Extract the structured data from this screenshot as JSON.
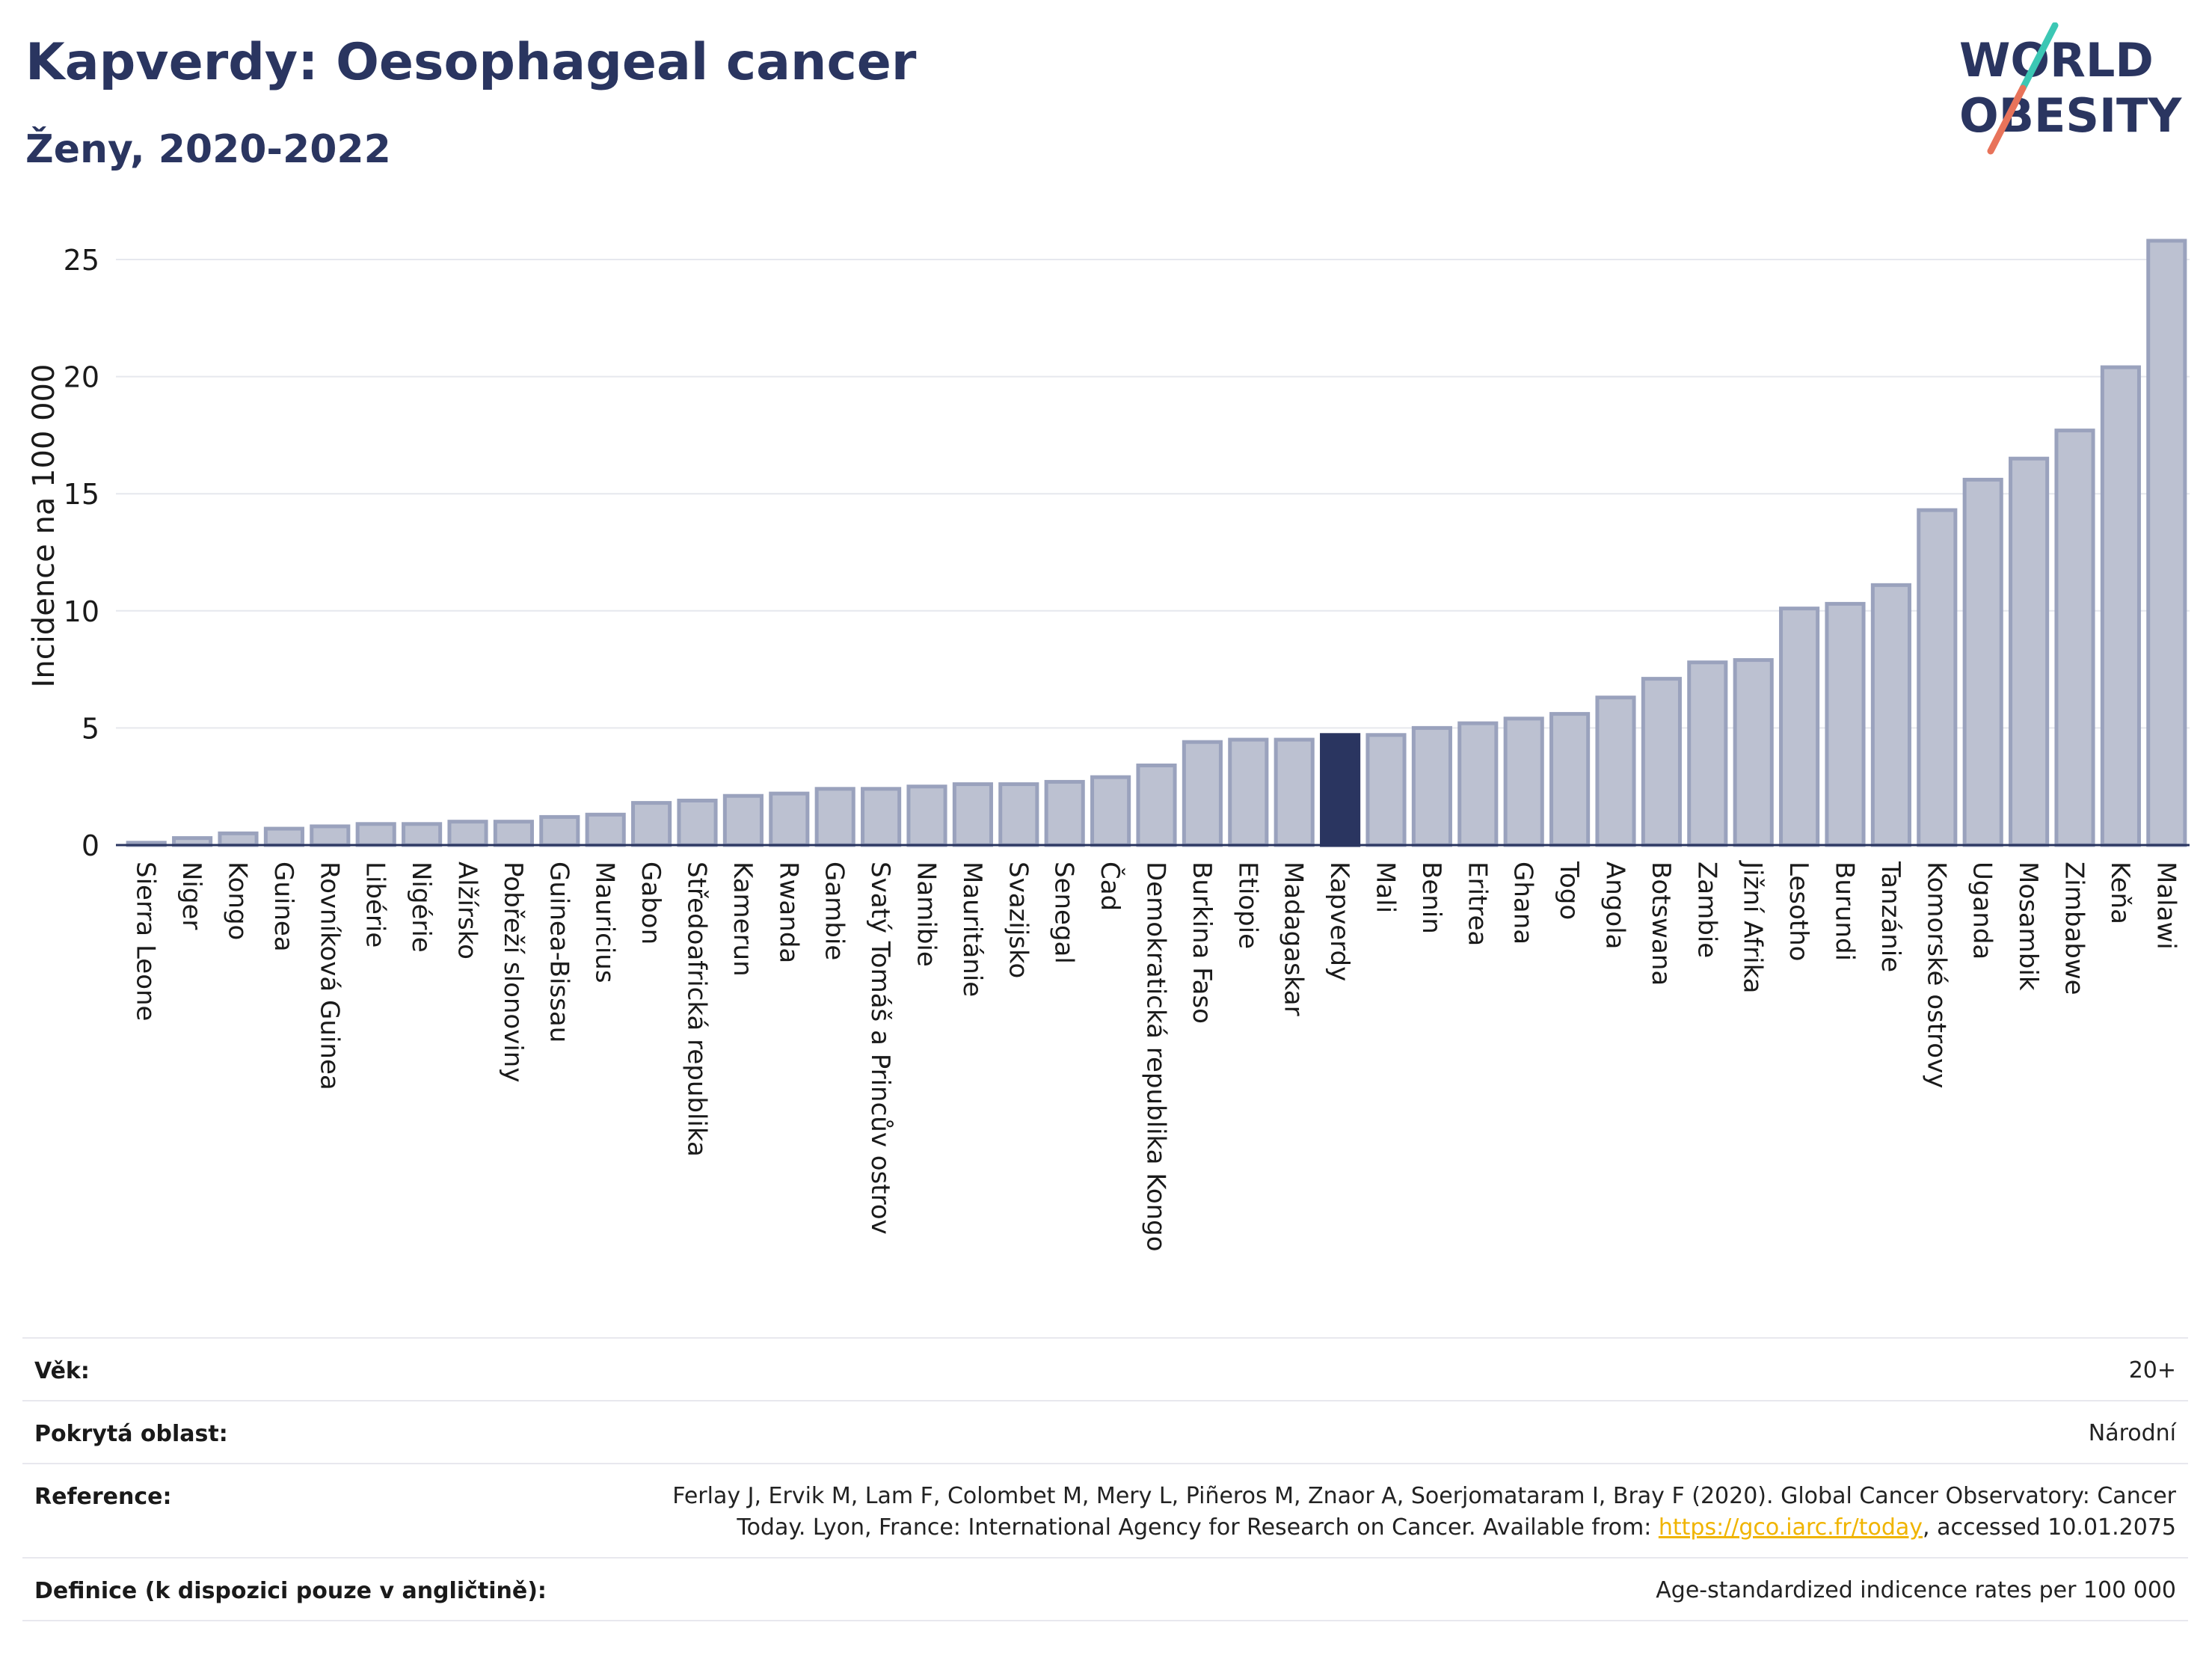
{
  "header": {
    "title": "Kapverdy: Oesophageal cancer",
    "subtitle": "Ženy, 2020-2022"
  },
  "logo": {
    "line1": "WORLD",
    "line2": "OBESITY",
    "slash_colors": [
      "#3cc7b4",
      "#e8735a"
    ]
  },
  "colors": {
    "bar": "#bcc1d1",
    "bar_border": "#9aa2bd",
    "highlight": "#2a3560",
    "grid": "#e6e8ee"
  },
  "chart_data": {
    "type": "bar",
    "ylabel": "Incidence na 100 000",
    "ylim": [
      0,
      26.5
    ],
    "yticks": [
      0,
      5,
      10,
      15,
      20,
      25
    ],
    "grid": true,
    "highlight": "Kapverdy",
    "categories": [
      "Sierra Leone",
      "Niger",
      "Kongo",
      "Guinea",
      "Rovníková Guinea",
      "Libérie",
      "Nigérie",
      "Alžírsko",
      "Pobřeží slonoviny",
      "Guinea-Bissau",
      "Mauricius",
      "Gabon",
      "Středoafrická republika",
      "Kamerun",
      "Rwanda",
      "Gambie",
      "Svatý Tomáš a Princův ostrov",
      "Namibie",
      "Mauritánie",
      "Svazijsko",
      "Senegal",
      "Čad",
      "Demokratická republika Kongo",
      "Burkina Faso",
      "Etiopie",
      "Madagaskar",
      "Kapverdy",
      "Mali",
      "Benin",
      "Eritrea",
      "Ghana",
      "Togo",
      "Angola",
      "Botswana",
      "Zambie",
      "Jižní Afrika",
      "Lesotho",
      "Burundi",
      "Tanzánie",
      "Komorské ostrovy",
      "Uganda",
      "Mosambik",
      "Zimbabwe",
      "Keňa",
      "Malawi"
    ],
    "values": [
      0.1,
      0.3,
      0.5,
      0.7,
      0.8,
      0.9,
      0.9,
      1.0,
      1.0,
      1.2,
      1.3,
      1.8,
      1.9,
      2.1,
      2.2,
      2.4,
      2.4,
      2.5,
      2.6,
      2.6,
      2.7,
      2.9,
      3.4,
      4.4,
      4.5,
      4.5,
      4.7,
      4.7,
      5.0,
      5.2,
      5.4,
      5.6,
      6.3,
      7.1,
      7.8,
      7.9,
      10.1,
      10.3,
      11.1,
      14.3,
      15.6,
      16.5,
      17.7,
      20.4,
      25.8
    ]
  },
  "info": [
    {
      "key": "Věk:",
      "value": "20+"
    },
    {
      "key": "Pokrytá oblast:",
      "value": "Národní"
    },
    {
      "key": "Reference:",
      "value_line1": "Ferlay J, Ervik M, Lam F, Colombet M, Mery L, Piñeros M, Znaor A, Soerjomataram I, Bray F (2020). Global Cancer Observatory: Cancer",
      "value_line2_pre": "Today. Lyon, France: International Agency for Research on Cancer. Available from: ",
      "link": "https://gco.iarc.fr/today",
      "value_line2_post": ", accessed 10.01.2075"
    },
    {
      "key": "Definice (k dispozici pouze v angličtině):",
      "value": "Age-standardized indicence rates per 100 000"
    }
  ]
}
